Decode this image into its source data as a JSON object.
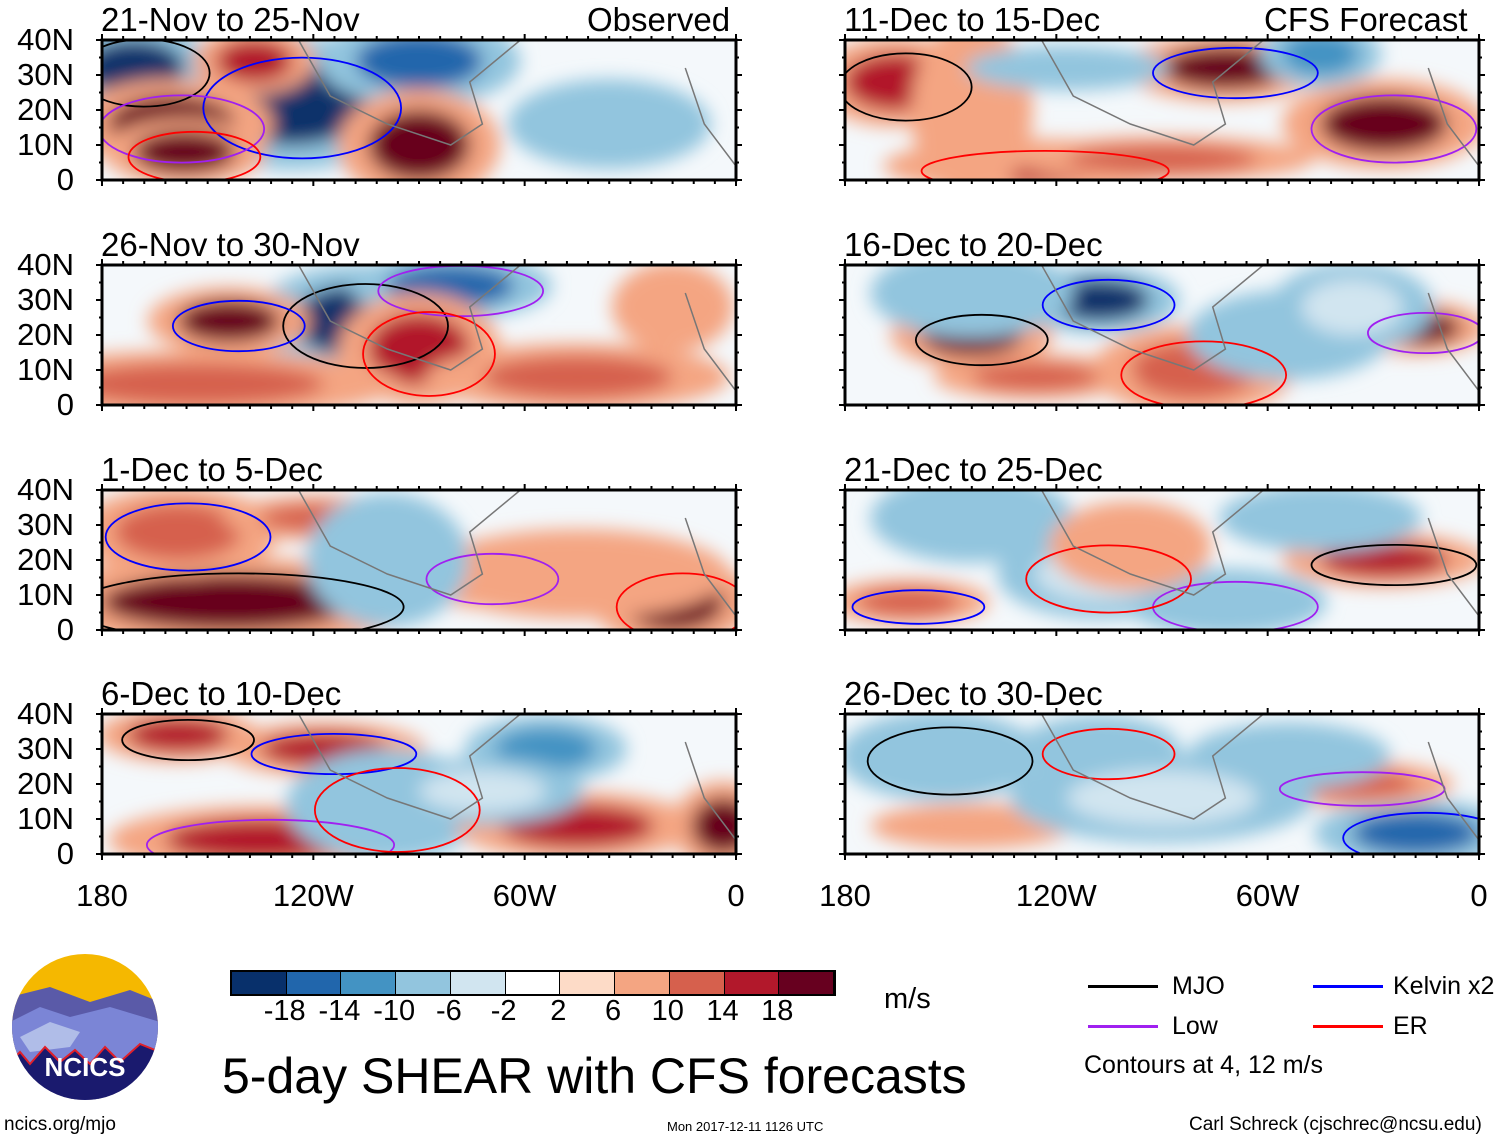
{
  "header": {
    "left_label": "Observed",
    "right_label": "CFS Forecast"
  },
  "panels": [
    {
      "title": "21-Nov to 25-Nov",
      "column": "observed"
    },
    {
      "title": "26-Nov to 30-Nov",
      "column": "observed"
    },
    {
      "title": "1-Dec to 5-Dec",
      "column": "observed"
    },
    {
      "title": "6-Dec to 10-Dec",
      "column": "observed"
    },
    {
      "title": "11-Dec to 15-Dec",
      "column": "forecast"
    },
    {
      "title": "16-Dec to 20-Dec",
      "column": "forecast"
    },
    {
      "title": "21-Dec to 25-Dec",
      "column": "forecast"
    },
    {
      "title": "26-Dec to 30-Dec",
      "column": "forecast"
    }
  ],
  "lat_ticks": [
    "40N",
    "30N",
    "20N",
    "10N",
    "0"
  ],
  "lon_ticks": [
    "180",
    "120W",
    "60W",
    "0"
  ],
  "colorbar": {
    "colors": [
      "#08306b",
      "#2166ac",
      "#4393c3",
      "#92c5de",
      "#d1e5f0",
      "#ffffff",
      "#fddbc7",
      "#f4a582",
      "#d6604d",
      "#b2182b",
      "#67001f"
    ],
    "labels": [
      "-18",
      "-14",
      "-10",
      "-6",
      "-2",
      "2",
      "6",
      "10",
      "14",
      "18"
    ],
    "units": "m/s"
  },
  "legend": {
    "items": [
      {
        "label": "MJO",
        "color": "#000000"
      },
      {
        "label": "Kelvin x2",
        "color": "#0000ff"
      },
      {
        "label": "Low",
        "color": "#a020f0"
      },
      {
        "label": "ER",
        "color": "#ff0000"
      }
    ],
    "note": "Contours at 4, 12 m/s"
  },
  "title": "5-day SHEAR with CFS forecasts",
  "logo": {
    "text": "NCICS"
  },
  "footer": {
    "left": "ncics.org/mjo",
    "center": "Mon 2017-12-11 1126 UTC",
    "right": "Carl Schreck (cjschrec@ncsu.edu)"
  }
}
